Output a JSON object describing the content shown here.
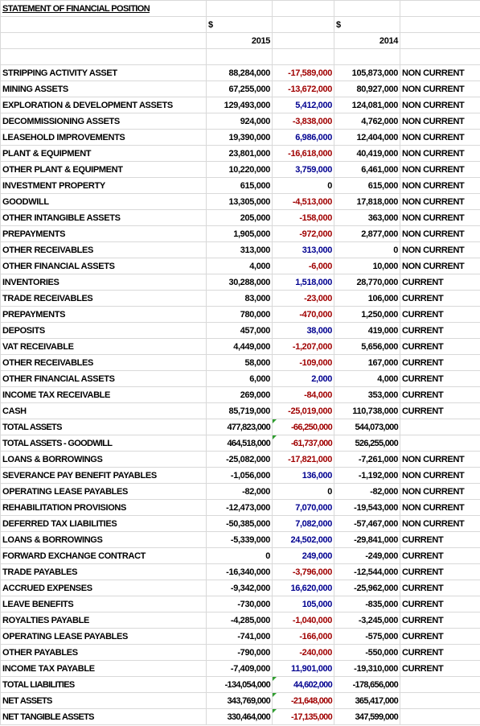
{
  "header": {
    "title": "STATEMENT OF FINANCIAL POSITION",
    "currency": [
      "$",
      "$"
    ],
    "years": [
      "2015",
      "2014"
    ]
  },
  "table": {
    "rows": [
      [
        "STRIPPING ACTIVITY ASSET",
        "88,284,000",
        "-17,589,000",
        "105,873,000",
        "NON CURRENT"
      ],
      [
        "MINING ASSETS",
        "67,255,000",
        "-13,672,000",
        "80,927,000",
        "NON CURRENT"
      ],
      [
        "EXPLORATION & DEVELOPMENT ASSETS",
        "129,493,000",
        "5,412,000",
        "124,081,000",
        "NON CURRENT"
      ],
      [
        "DECOMMISSIONING ASSETS",
        "924,000",
        "-3,838,000",
        "4,762,000",
        "NON CURRENT"
      ],
      [
        "LEASEHOLD IMPROVEMENTS",
        "19,390,000",
        "6,986,000",
        "12,404,000",
        "NON CURRENT"
      ],
      [
        "PLANT & EQUIPMENT",
        "23,801,000",
        "-16,618,000",
        "40,419,000",
        "NON CURRENT"
      ],
      [
        "OTHER PLANT & EQUIPMENT",
        "10,220,000",
        "3,759,000",
        "6,461,000",
        "NON CURRENT"
      ],
      [
        "INVESTMENT PROPERTY",
        "615,000",
        "0",
        "615,000",
        "NON CURRENT"
      ],
      [
        "GOODWILL",
        "13,305,000",
        "-4,513,000",
        "17,818,000",
        "NON CURRENT"
      ],
      [
        "OTHER INTANGIBLE ASSETS",
        "205,000",
        "-158,000",
        "363,000",
        "NON CURRENT"
      ],
      [
        "PREPAYMENTS",
        "1,905,000",
        "-972,000",
        "2,877,000",
        "NON CURRENT"
      ],
      [
        "OTHER RECEIVABLES",
        "313,000",
        "313,000",
        "0",
        "NON CURRENT"
      ],
      [
        "OTHER FINANCIAL ASSETS",
        "4,000",
        "-6,000",
        "10,000",
        "NON CURRENT"
      ],
      [
        "INVENTORIES",
        "30,288,000",
        "1,518,000",
        "28,770,000",
        "CURRENT"
      ],
      [
        "TRADE RECEIVABLES",
        "83,000",
        "-23,000",
        "106,000",
        "CURRENT"
      ],
      [
        "PREPAYMENTS",
        "780,000",
        "-470,000",
        "1,250,000",
        "CURRENT"
      ],
      [
        "DEPOSITS",
        "457,000",
        "38,000",
        "419,000",
        "CURRENT"
      ],
      [
        "VAT RECEIVABLE",
        "4,449,000",
        "-1,207,000",
        "5,656,000",
        "CURRENT"
      ],
      [
        "OTHER RECEIVABLES",
        "58,000",
        "-109,000",
        "167,000",
        "CURRENT"
      ],
      [
        "OTHER FINANCIAL ASSETS",
        "6,000",
        "2,000",
        "4,000",
        "CURRENT"
      ],
      [
        "INCOME TAX RECEIVABLE",
        "269,000",
        "-84,000",
        "353,000",
        "CURRENT"
      ],
      [
        "CASH",
        "85,719,000",
        "-25,019,000",
        "110,738,000",
        "CURRENT"
      ],
      [
        "TOTAL ASSETS",
        "477,823,000",
        "-66,250,000",
        "544,073,000",
        null
      ],
      [
        "TOTAL ASSETS - GOODWILL",
        "464,518,000",
        "-61,737,000",
        "526,255,000",
        null
      ],
      [
        "LOANS & BORROWINGS",
        "-25,082,000",
        "-17,821,000",
        "-7,261,000",
        "NON CURRENT"
      ],
      [
        "SEVERANCE PAY BENEFIT PAYABLES",
        "-1,056,000",
        "136,000",
        "-1,192,000",
        "NON CURRENT"
      ],
      [
        "OPERATING LEASE PAYABLES",
        "-82,000",
        "0",
        "-82,000",
        "NON CURRENT"
      ],
      [
        "REHABILITATION PROVISIONS",
        "-12,473,000",
        "7,070,000",
        "-19,543,000",
        "NON CURRENT"
      ],
      [
        "DEFERRED TAX LIABILITIES",
        "-50,385,000",
        "7,082,000",
        "-57,467,000",
        "NON CURRENT"
      ],
      [
        "LOANS & BORROWINGS",
        "-5,339,000",
        "24,502,000",
        "-29,841,000",
        "CURRENT"
      ],
      [
        "FORWARD EXCHANGE CONTRACT",
        "0",
        "249,000",
        "-249,000",
        "CURRENT"
      ],
      [
        "TRADE PAYABLES",
        "-16,340,000",
        "-3,796,000",
        "-12,544,000",
        "CURRENT"
      ],
      [
        "ACCRUED EXPENSES",
        "-9,342,000",
        "16,620,000",
        "-25,962,000",
        "CURRENT"
      ],
      [
        "LEAVE BENEFITS",
        "-730,000",
        "105,000",
        "-835,000",
        "CURRENT"
      ],
      [
        "ROYALTIES PAYABLE",
        "-4,285,000",
        "-1,040,000",
        "-3,245,000",
        "CURRENT"
      ],
      [
        "OPERATING LEASE PAYABLES",
        "-741,000",
        "-166,000",
        "-575,000",
        "CURRENT"
      ],
      [
        "OTHER PAYABLES",
        "-790,000",
        "-240,000",
        "-550,000",
        "CURRENT"
      ],
      [
        "INCOME TAX PAYABLE",
        "-7,409,000",
        "11,901,000",
        "-19,310,000",
        "CURRENT"
      ],
      [
        "TOTAL LIABILITIES",
        "-134,054,000",
        "44,602,000",
        "-178,656,000",
        null
      ],
      [
        "NET ASSETS",
        "343,769,000",
        "-21,648,000",
        "365,417,000",
        null
      ],
      [
        "NET TANGIBLE ASSETS",
        "330,464,000",
        "-17,135,000",
        "347,599,000",
        null
      ]
    ]
  }
}
